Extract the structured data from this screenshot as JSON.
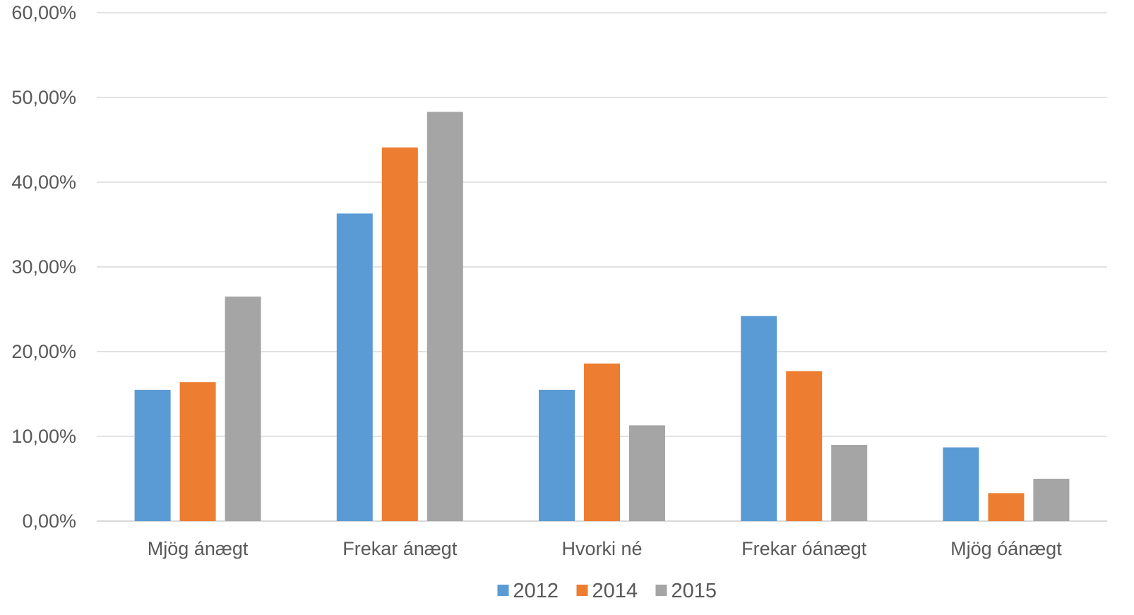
{
  "chart_data": {
    "type": "bar",
    "title": "",
    "xlabel": "",
    "ylabel": "",
    "categories": [
      "Mjög ánægt",
      "Frekar ánægt",
      "Hvorki né",
      "Frekar óánægt",
      "Mjög óánægt"
    ],
    "series": [
      {
        "name": "2012",
        "color": "#5b9bd5",
        "values": [
          15.5,
          36.3,
          15.5,
          24.2,
          8.7
        ]
      },
      {
        "name": "2014",
        "color": "#ed7d31",
        "values": [
          16.4,
          44.1,
          18.6,
          17.7,
          3.3
        ]
      },
      {
        "name": "2015",
        "color": "#a5a5a5",
        "values": [
          26.5,
          48.3,
          11.3,
          9.0,
          5.0
        ]
      }
    ],
    "ylim": [
      0,
      60
    ],
    "yticks": [
      "0,00%",
      "10,00%",
      "20,00%",
      "30,00%",
      "40,00%",
      "50,00%",
      "60,00%"
    ],
    "grid": true,
    "legend_position": "bottom"
  }
}
